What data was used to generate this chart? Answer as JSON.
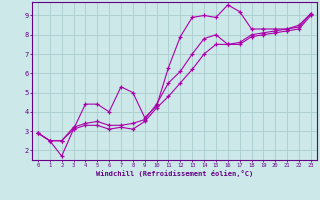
{
  "bg_color": "#cce8e8",
  "grid_color": "#aacccc",
  "line_color": "#aa00aa",
  "marker": "+",
  "xlabel": "Windchill (Refroidissement éolien,°C)",
  "xlabel_color": "#660088",
  "tick_color": "#660088",
  "xlim": [
    -0.5,
    23.5
  ],
  "ylim": [
    1.5,
    9.7
  ],
  "xticks": [
    0,
    1,
    2,
    3,
    4,
    5,
    6,
    7,
    8,
    9,
    10,
    11,
    12,
    13,
    14,
    15,
    16,
    17,
    18,
    19,
    20,
    21,
    22,
    23
  ],
  "yticks": [
    2,
    3,
    4,
    5,
    6,
    7,
    8,
    9
  ],
  "series1_x": [
    0,
    1,
    2,
    3,
    4,
    5,
    6,
    7,
    8,
    9,
    10,
    11,
    12,
    13,
    14,
    15,
    16,
    17,
    18,
    19,
    20,
    21,
    22,
    23
  ],
  "series1_y": [
    2.9,
    2.5,
    1.7,
    3.1,
    4.4,
    4.4,
    4.0,
    5.3,
    5.0,
    3.7,
    4.3,
    6.3,
    7.9,
    8.9,
    9.0,
    8.9,
    9.55,
    9.2,
    8.3,
    8.3,
    8.3,
    8.3,
    8.5,
    9.1
  ],
  "series2_x": [
    0,
    1,
    2,
    3,
    4,
    5,
    6,
    7,
    8,
    9,
    10,
    11,
    12,
    13,
    14,
    15,
    16,
    17,
    18,
    19,
    20,
    21,
    22,
    23
  ],
  "series2_y": [
    2.9,
    2.5,
    2.5,
    3.1,
    3.3,
    3.3,
    3.1,
    3.2,
    3.1,
    3.5,
    4.2,
    4.8,
    5.5,
    6.2,
    7.0,
    7.5,
    7.5,
    7.5,
    7.9,
    8.0,
    8.1,
    8.2,
    8.3,
    9.0
  ],
  "series3_x": [
    0,
    1,
    2,
    3,
    4,
    5,
    6,
    7,
    8,
    9,
    10,
    11,
    12,
    13,
    14,
    15,
    16,
    17,
    18,
    19,
    20,
    21,
    22,
    23
  ],
  "series3_y": [
    2.9,
    2.5,
    2.5,
    3.2,
    3.4,
    3.5,
    3.3,
    3.3,
    3.4,
    3.6,
    4.4,
    5.5,
    6.1,
    7.0,
    7.8,
    8.0,
    7.5,
    7.6,
    8.0,
    8.1,
    8.2,
    8.3,
    8.4,
    9.1
  ]
}
